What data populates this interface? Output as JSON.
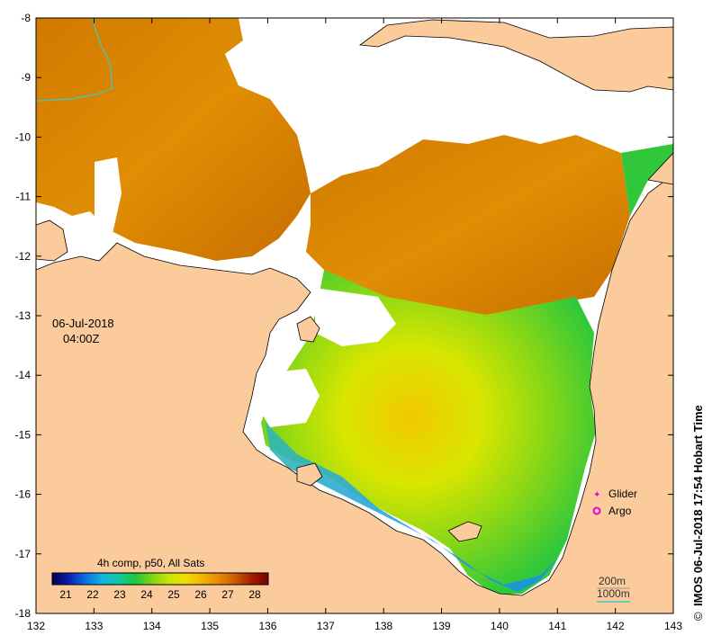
{
  "map": {
    "date_label": "06-Jul-2018",
    "time_label": "04:00Z",
    "credit": "IMOS 06-Jul-2018 17:54 Hobart Time",
    "copyright_symbol": "©",
    "axes": {
      "lon_ticks": [
        "132",
        "133",
        "134",
        "135",
        "136",
        "137",
        "138",
        "139",
        "140",
        "141",
        "142",
        "143"
      ],
      "lat_ticks": [
        "-8",
        "-9",
        "-10",
        "-11",
        "-12",
        "-13",
        "-14",
        "-15",
        "-16",
        "-17",
        "-18"
      ],
      "lon_range": [
        132,
        143
      ],
      "lat_range": [
        -18,
        -8
      ]
    },
    "colorbar": {
      "title": "4h comp, p50, All Sats",
      "ticks": [
        "21",
        "22",
        "23",
        "24",
        "25",
        "26",
        "27",
        "28"
      ],
      "range": [
        20.5,
        28.5
      ],
      "colors": [
        "#06004e",
        "#0a1fb0",
        "#0a6fe6",
        "#12b4e0",
        "#10c8a0",
        "#1ec83c",
        "#7fd412",
        "#c8e60a",
        "#f0e000",
        "#f5b400",
        "#e88a00",
        "#cc5a00",
        "#a61c00",
        "#7a0000"
      ]
    },
    "legend": {
      "glider_label": "Glider",
      "argo_label": "Argo",
      "glider_color": "#e000e0",
      "argo_color": "#e000e0"
    },
    "scale": {
      "contour_200": "200m",
      "contour_1000": "1000m",
      "contour_1000_color": "#40c8c8"
    },
    "colors": {
      "land": "#fbcb9b",
      "no_data": "#ffffff"
    }
  }
}
